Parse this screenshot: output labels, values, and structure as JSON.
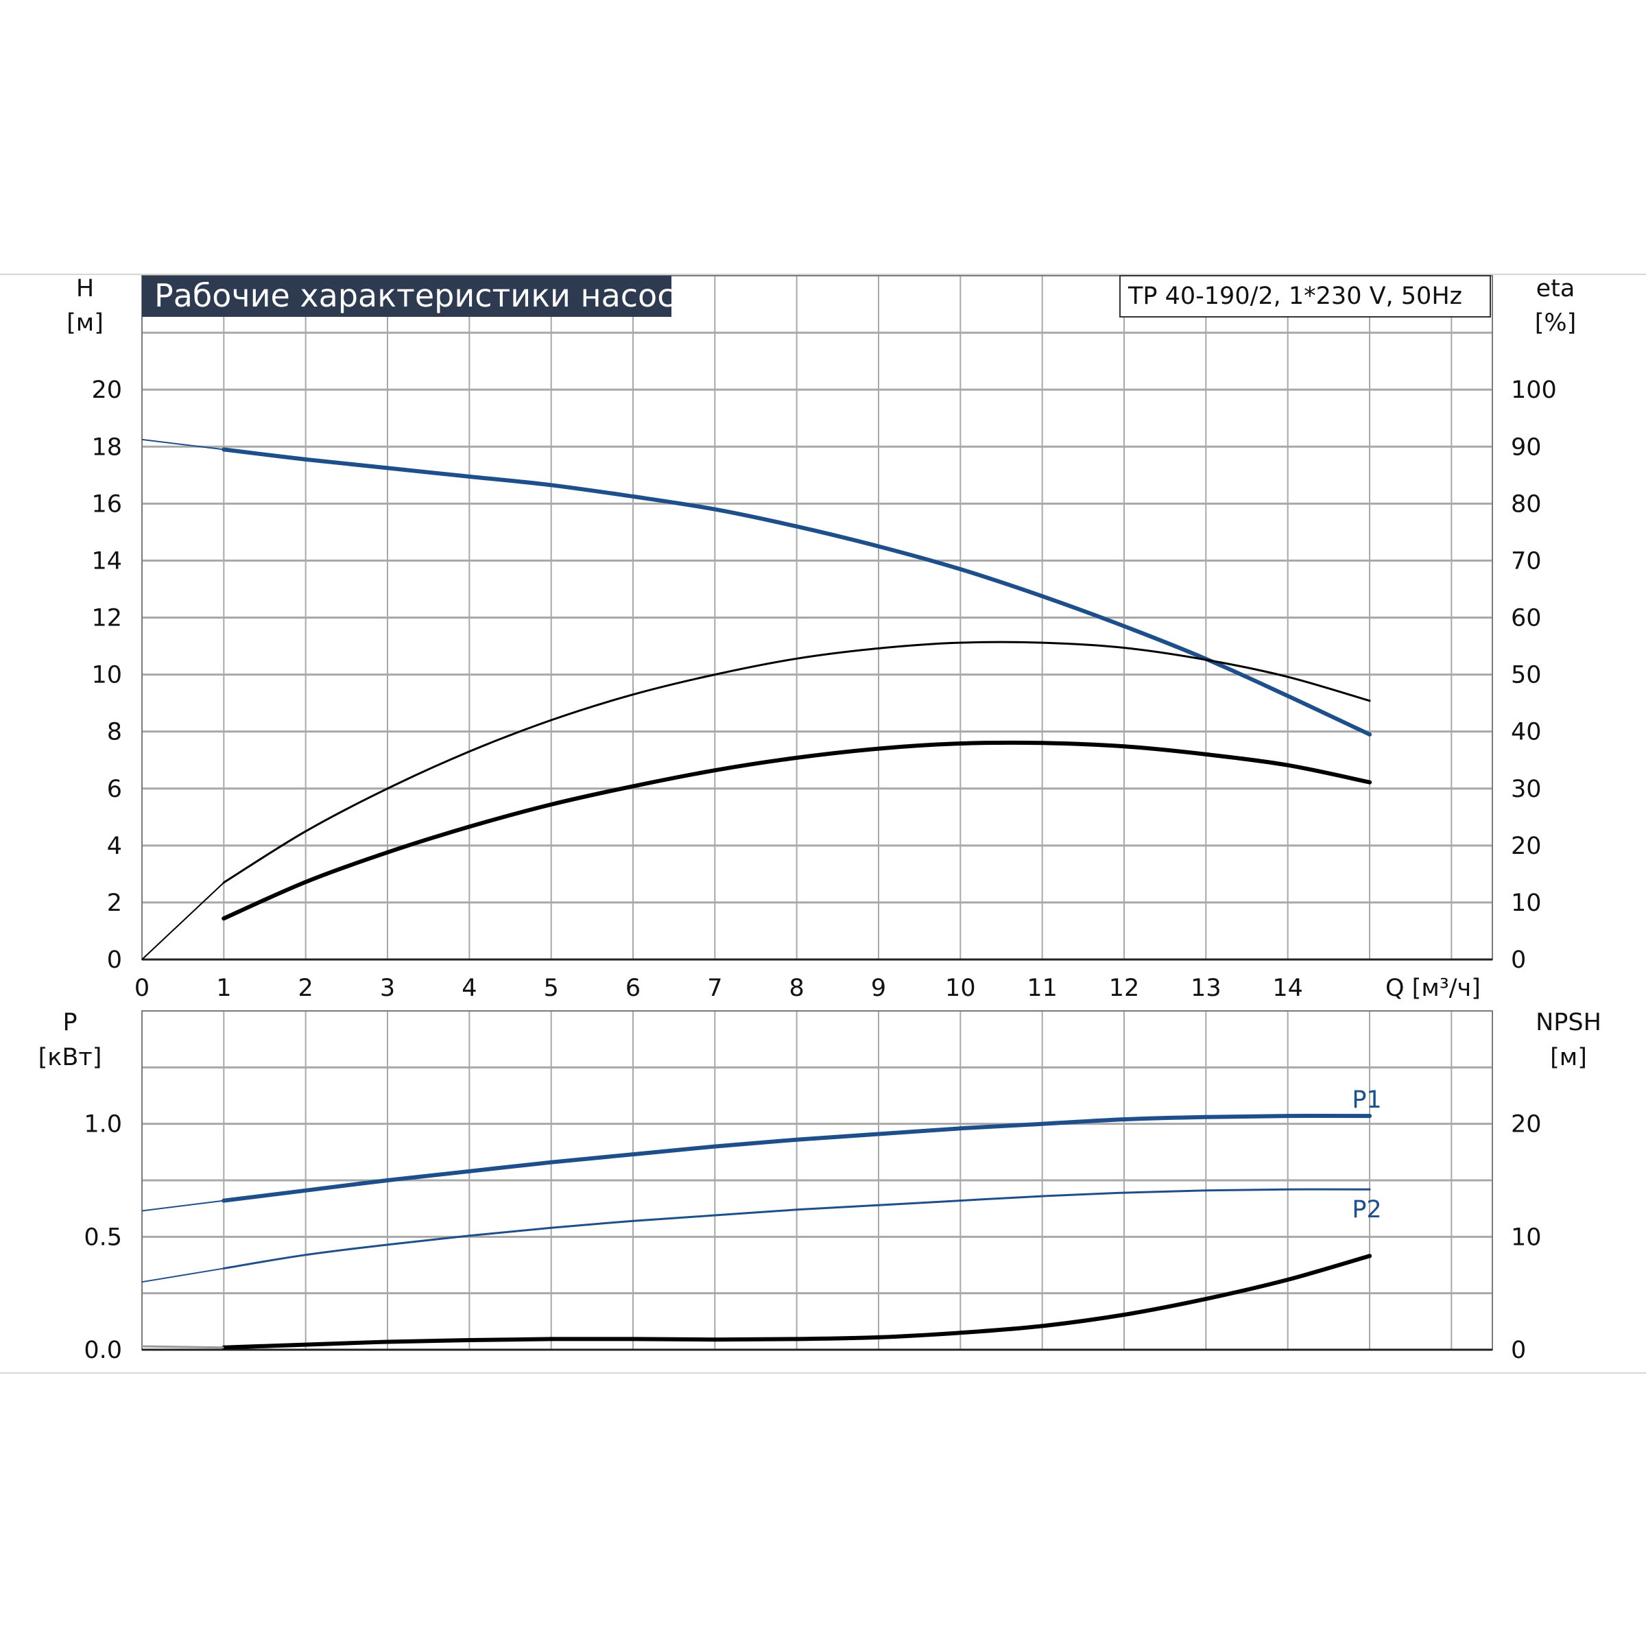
{
  "colors": {
    "blue": "#1e4f8a",
    "black": "#000000",
    "grid": "#a8a8a8",
    "title_bg": "#2d3a4f",
    "title_text": "#ffffff"
  },
  "chart_data": [
    {
      "type": "line",
      "title": "Рабочие характеристики насоса",
      "model_label": "TP 40-190/2, 1*230 V, 50Hz",
      "x_ticks": [
        "0",
        "1",
        "2",
        "3",
        "4",
        "5",
        "6",
        "7",
        "8",
        "9",
        "10",
        "11",
        "12",
        "13",
        "14"
      ],
      "x_axis_label": "Q [м³/ч]",
      "xlim": [
        0,
        16.5
      ],
      "y_left": {
        "label_line1": "H",
        "label_line2": "[м]",
        "ticks": [
          "0",
          "2",
          "4",
          "6",
          "8",
          "10",
          "12",
          "14",
          "16",
          "18",
          "20"
        ],
        "lim": [
          0,
          24
        ]
      },
      "y_right": {
        "label_line1": "eta",
        "label_line2": "[%]",
        "ticks": [
          "0",
          "10",
          "20",
          "30",
          "40",
          "50",
          "60",
          "70",
          "80",
          "90",
          "100"
        ],
        "lim": [
          0,
          120
        ]
      },
      "grid": true,
      "series": [
        {
          "axis": "H",
          "color": "#1e4f8a",
          "weight": "thick",
          "extend_to_zero": true,
          "x": [
            1,
            2,
            3,
            4,
            5,
            6,
            7,
            8,
            9,
            10,
            11,
            12,
            13,
            14,
            15
          ],
          "y": [
            17.9,
            17.55,
            17.25,
            16.95,
            16.65,
            16.25,
            15.8,
            15.2,
            14.5,
            13.7,
            12.75,
            11.7,
            10.55,
            9.25,
            7.9
          ]
        },
        {
          "axis": "eta",
          "color": "#000000",
          "weight": "thin",
          "extend_to_zero": true,
          "x": [
            1,
            2,
            3,
            4,
            5,
            6,
            7,
            8,
            9,
            10,
            11,
            12,
            13,
            14,
            15
          ],
          "y": [
            13.5,
            22.5,
            30,
            36.5,
            42,
            46.5,
            50,
            52.8,
            54.6,
            55.6,
            55.6,
            54.7,
            52.6,
            49.6,
            45.4
          ]
        },
        {
          "axis": "eta",
          "color": "#000000",
          "weight": "thick",
          "extend_to_zero": false,
          "x": [
            1,
            2,
            3,
            4,
            5,
            6,
            7,
            8,
            9,
            10,
            11,
            12,
            13,
            14,
            15
          ],
          "y": [
            7.2,
            13.6,
            18.8,
            23.3,
            27.2,
            30.4,
            33.2,
            35.4,
            37,
            37.9,
            38,
            37.4,
            36,
            34.1,
            31.1
          ]
        }
      ]
    },
    {
      "type": "line",
      "x_ticks": [],
      "xlim": [
        0,
        16.5
      ],
      "y_left": {
        "label_line1": "P",
        "label_line2": "[кВт]",
        "ticks": [
          "0.0",
          "0.5",
          "1.0"
        ],
        "lim": [
          0,
          1.5
        ]
      },
      "y_right": {
        "label_line1": "NPSH",
        "label_line2": "[м]",
        "ticks": [
          "0",
          "10",
          "20"
        ],
        "lim": [
          0,
          30
        ]
      },
      "grid": true,
      "series": [
        {
          "name": "P1",
          "axis": "P",
          "color": "#1e4f8a",
          "weight": "thick",
          "extend_to_zero": true,
          "x": [
            1,
            2,
            3,
            4,
            5,
            6,
            7,
            8,
            9,
            10,
            11,
            12,
            13,
            14,
            15
          ],
          "y": [
            0.66,
            0.705,
            0.75,
            0.79,
            0.83,
            0.865,
            0.9,
            0.93,
            0.955,
            0.98,
            1.0,
            1.02,
            1.03,
            1.035,
            1.035
          ]
        },
        {
          "name": "P2",
          "axis": "P",
          "color": "#1e4f8a",
          "weight": "thin",
          "extend_to_zero": true,
          "x": [
            1,
            2,
            3,
            4,
            5,
            6,
            7,
            8,
            9,
            10,
            11,
            12,
            13,
            14,
            15
          ],
          "y": [
            0.36,
            0.42,
            0.465,
            0.505,
            0.54,
            0.57,
            0.595,
            0.62,
            0.64,
            0.66,
            0.68,
            0.695,
            0.705,
            0.71,
            0.71
          ]
        },
        {
          "axis": "NPSH",
          "color": "#000000",
          "weight": "thick",
          "extend_to_zero": false,
          "x": [
            1,
            2,
            3,
            4,
            5,
            6,
            7,
            8,
            9,
            10,
            11,
            12,
            13,
            14,
            15
          ],
          "y": [
            0.2,
            0.45,
            0.7,
            0.85,
            0.95,
            0.95,
            0.9,
            0.95,
            1.1,
            1.5,
            2.1,
            3.1,
            4.5,
            6.2,
            8.3
          ]
        }
      ]
    }
  ]
}
